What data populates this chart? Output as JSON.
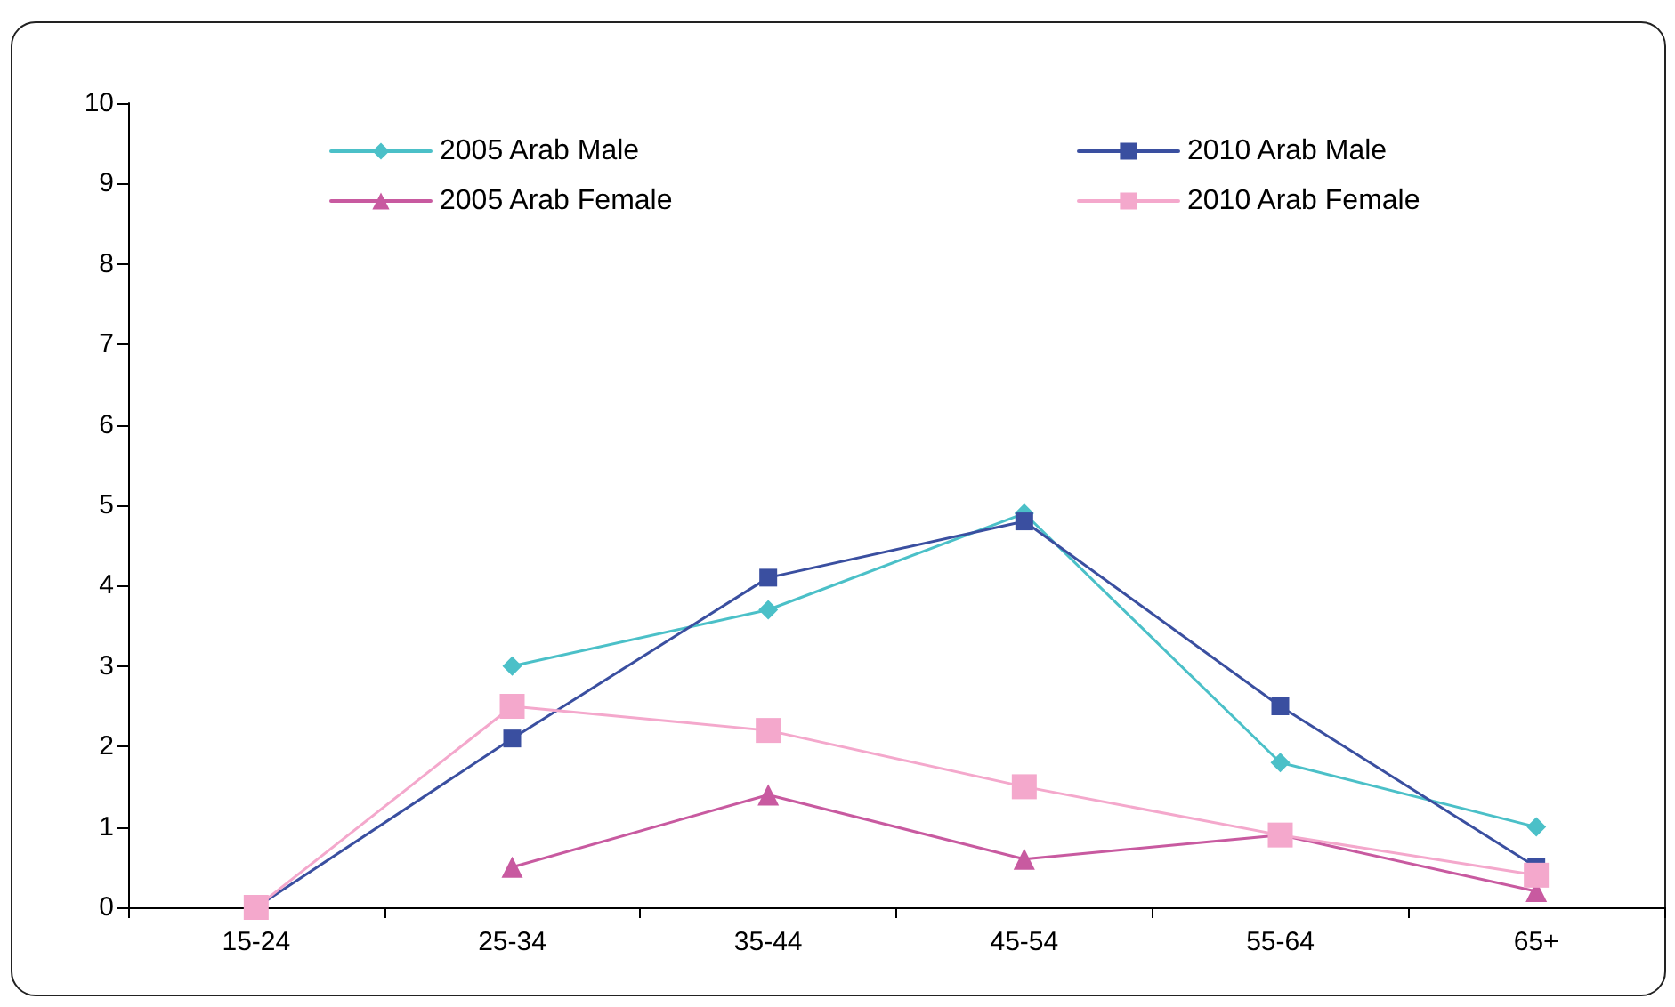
{
  "chart_data": {
    "type": "line",
    "categories": [
      "15-24",
      "25-34",
      "35-44",
      "45-54",
      "55-64",
      "65+"
    ],
    "series": [
      {
        "name": "2005 Arab Male",
        "color": "#4bc0c8",
        "marker": "diamond",
        "values": [
          null,
          3.0,
          3.7,
          4.9,
          1.8,
          1.0
        ]
      },
      {
        "name": "2010 Arab Male",
        "color": "#3a4fa0",
        "marker": "square",
        "values": [
          0,
          2.1,
          4.1,
          4.8,
          2.5,
          0.5
        ]
      },
      {
        "name": "2005 Arab Female",
        "color": "#c85aa0",
        "marker": "triangle",
        "values": [
          null,
          0.5,
          1.4,
          0.6,
          0.9,
          0.2
        ]
      },
      {
        "name": "2010 Arab Female",
        "color": "#f4a8cc",
        "marker": "square",
        "values": [
          0,
          2.5,
          2.2,
          1.5,
          0.9,
          0.4
        ]
      }
    ],
    "ylim": [
      0,
      10
    ],
    "yticks": [
      0,
      1,
      2,
      3,
      4,
      5,
      6,
      7,
      8,
      9,
      10
    ],
    "grid": false,
    "legend": "top",
    "line_style": "solid"
  }
}
